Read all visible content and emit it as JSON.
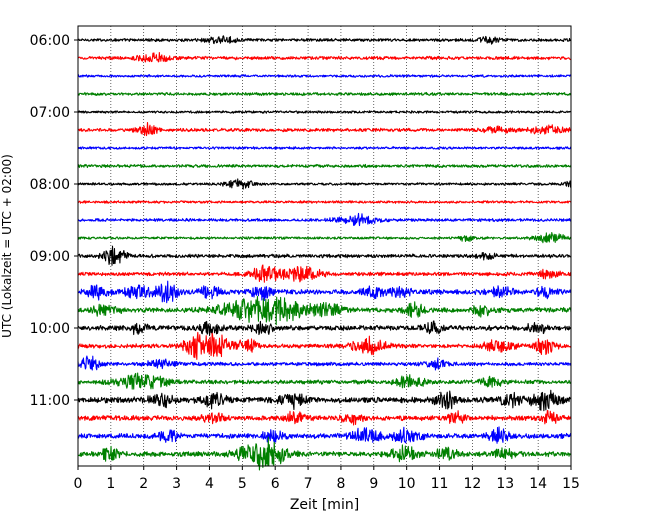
{
  "chart_data": {
    "type": "line",
    "title": "",
    "xlabel": "Zeit  [min]",
    "ylabel": "UTC (Lokalzeit = UTC + 02:00)",
    "xlim": [
      0,
      15
    ],
    "x_ticks": [
      0,
      1,
      2,
      3,
      4,
      5,
      6,
      7,
      8,
      9,
      10,
      11,
      12,
      13,
      14,
      15
    ],
    "y_tick_labels": [
      "06:00",
      "07:00",
      "08:00",
      "09:00",
      "10:00",
      "11:00"
    ],
    "trace_interval_minutes": 15,
    "grid": "vertical dotted",
    "colors": [
      "#000000",
      "#ff0000",
      "#0000ff",
      "#008000"
    ],
    "traces": [
      {
        "start": "06:00",
        "color": "#000000",
        "amplitude": 0.18,
        "events": [
          [
            4.3,
            0.35,
            0.5
          ],
          [
            12.5,
            0.45,
            0.3
          ]
        ]
      },
      {
        "start": "06:15",
        "color": "#ff0000",
        "amplitude": 0.2,
        "events": [
          [
            2.3,
            0.6,
            0.4
          ]
        ]
      },
      {
        "start": "06:30",
        "color": "#0000ff",
        "amplitude": 0.15,
        "events": []
      },
      {
        "start": "06:45",
        "color": "#008000",
        "amplitude": 0.18,
        "events": []
      },
      {
        "start": "07:00",
        "color": "#000000",
        "amplitude": 0.15,
        "events": []
      },
      {
        "start": "07:15",
        "color": "#ff0000",
        "amplitude": 0.2,
        "events": [
          [
            2.1,
            0.7,
            0.3
          ],
          [
            12.8,
            0.4,
            0.4
          ],
          [
            14.3,
            0.5,
            0.5
          ]
        ]
      },
      {
        "start": "07:30",
        "color": "#0000ff",
        "amplitude": 0.15,
        "events": []
      },
      {
        "start": "07:45",
        "color": "#008000",
        "amplitude": 0.18,
        "events": []
      },
      {
        "start": "08:00",
        "color": "#000000",
        "amplitude": 0.15,
        "events": [
          [
            4.9,
            0.55,
            0.4
          ],
          [
            15.0,
            0.4,
            0.2
          ]
        ]
      },
      {
        "start": "08:15",
        "color": "#ff0000",
        "amplitude": 0.15,
        "events": []
      },
      {
        "start": "08:30",
        "color": "#0000ff",
        "amplitude": 0.18,
        "events": [
          [
            8.5,
            0.7,
            0.6
          ]
        ]
      },
      {
        "start": "08:45",
        "color": "#008000",
        "amplitude": 0.15,
        "events": [
          [
            11.8,
            0.4,
            0.2
          ],
          [
            14.4,
            0.6,
            0.5
          ]
        ]
      },
      {
        "start": "09:00",
        "color": "#000000",
        "amplitude": 0.22,
        "events": [
          [
            1.1,
            1.2,
            0.3
          ],
          [
            12.4,
            0.35,
            0.3
          ]
        ]
      },
      {
        "start": "09:15",
        "color": "#ff0000",
        "amplitude": 0.22,
        "events": [
          [
            5.8,
            1.0,
            0.5
          ],
          [
            6.9,
            0.9,
            0.5
          ],
          [
            14.3,
            0.5,
            0.3
          ]
        ]
      },
      {
        "start": "09:30",
        "color": "#0000ff",
        "amplitude": 0.3,
        "events": [
          [
            0.6,
            0.9,
            0.3
          ],
          [
            1.8,
            0.7,
            0.4
          ],
          [
            2.7,
            1.1,
            0.3
          ],
          [
            4.0,
            0.8,
            0.3
          ],
          [
            5.6,
            0.9,
            0.3
          ],
          [
            8.9,
            0.8,
            0.3
          ],
          [
            9.8,
            0.7,
            0.3
          ],
          [
            12.9,
            0.7,
            0.3
          ],
          [
            14.2,
            0.6,
            0.3
          ]
        ]
      },
      {
        "start": "09:45",
        "color": "#008000",
        "amplitude": 0.3,
        "events": [
          [
            0.8,
            0.6,
            0.4
          ],
          [
            5.2,
            1.1,
            0.9
          ],
          [
            6.2,
            1.3,
            0.6
          ],
          [
            7.5,
            0.8,
            0.5
          ],
          [
            10.2,
            0.8,
            0.3
          ],
          [
            12.3,
            0.6,
            0.3
          ]
        ]
      },
      {
        "start": "10:00",
        "color": "#000000",
        "amplitude": 0.3,
        "events": [
          [
            1.8,
            0.6,
            0.3
          ],
          [
            4.0,
            0.9,
            0.3
          ],
          [
            5.6,
            0.7,
            0.3
          ],
          [
            10.8,
            0.6,
            0.3
          ],
          [
            14.0,
            0.6,
            0.3
          ]
        ]
      },
      {
        "start": "10:15",
        "color": "#ff0000",
        "amplitude": 0.25,
        "events": [
          [
            3.5,
            1.0,
            0.3
          ],
          [
            4.1,
            1.5,
            0.5
          ],
          [
            5.2,
            0.8,
            0.3
          ],
          [
            8.8,
            1.0,
            0.5
          ],
          [
            12.8,
            0.8,
            0.4
          ],
          [
            14.2,
            1.1,
            0.3
          ]
        ]
      },
      {
        "start": "10:30",
        "color": "#0000ff",
        "amplitude": 0.22,
        "events": [
          [
            0.3,
            0.8,
            0.4
          ],
          [
            2.5,
            0.6,
            0.4
          ],
          [
            10.9,
            0.5,
            0.3
          ]
        ]
      },
      {
        "start": "10:45",
        "color": "#008000",
        "amplitude": 0.25,
        "events": [
          [
            1.9,
            1.0,
            0.7
          ],
          [
            10.1,
            0.7,
            0.4
          ],
          [
            12.6,
            0.6,
            0.3
          ]
        ]
      },
      {
        "start": "11:00",
        "color": "#000000",
        "amplitude": 0.35,
        "events": [
          [
            2.5,
            0.8,
            0.3
          ],
          [
            4.1,
            0.8,
            0.4
          ],
          [
            6.5,
            0.8,
            0.4
          ],
          [
            11.2,
            0.9,
            0.3
          ],
          [
            13.2,
            0.8,
            0.3
          ],
          [
            14.2,
            1.1,
            0.4
          ]
        ]
      },
      {
        "start": "11:15",
        "color": "#ff0000",
        "amplitude": 0.3,
        "events": [
          [
            4.1,
            0.6,
            0.3
          ],
          [
            6.6,
            0.7,
            0.3
          ],
          [
            8.3,
            0.6,
            0.3
          ],
          [
            11.5,
            0.6,
            0.3
          ],
          [
            14.3,
            0.6,
            0.3
          ]
        ]
      },
      {
        "start": "11:30",
        "color": "#0000ff",
        "amplitude": 0.3,
        "events": [
          [
            2.8,
            0.6,
            0.3
          ],
          [
            5.9,
            0.6,
            0.3
          ],
          [
            8.8,
            1.0,
            0.4
          ],
          [
            10.0,
            0.8,
            0.4
          ],
          [
            12.8,
            0.8,
            0.3
          ]
        ]
      },
      {
        "start": "11:45",
        "color": "#008000",
        "amplitude": 0.3,
        "events": [
          [
            1.0,
            0.8,
            0.3
          ],
          [
            5.3,
            0.9,
            0.6
          ],
          [
            5.9,
            1.3,
            0.5
          ],
          [
            9.9,
            0.8,
            0.4
          ],
          [
            11.2,
            0.7,
            0.3
          ],
          [
            13.0,
            0.6,
            0.3
          ]
        ]
      }
    ]
  }
}
